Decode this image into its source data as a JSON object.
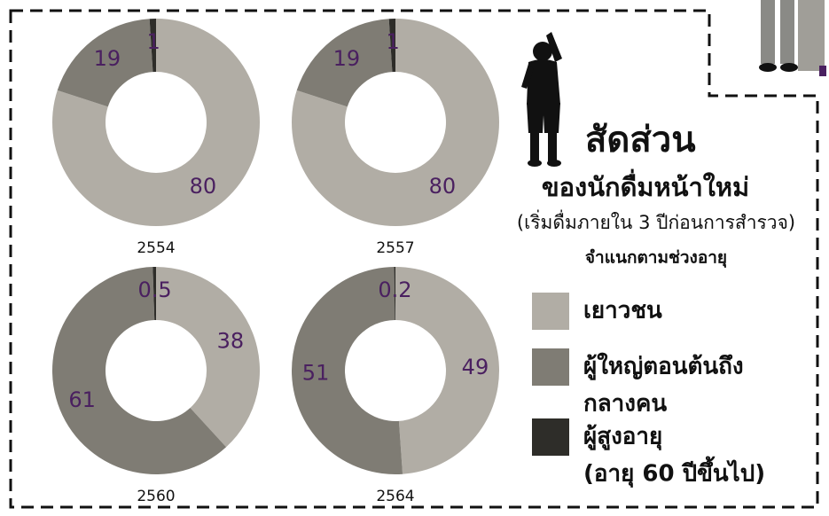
{
  "chart_data": [
    {
      "type": "pie",
      "donut": true,
      "title": "2554",
      "values": [
        80,
        19,
        1
      ]
    },
    {
      "type": "pie",
      "donut": true,
      "title": "2557",
      "values": [
        80,
        19,
        1
      ]
    },
    {
      "type": "pie",
      "donut": true,
      "title": "2560",
      "values": [
        38,
        61,
        0.5
      ]
    },
    {
      "type": "pie",
      "donut": true,
      "title": "2564",
      "values": [
        49,
        51,
        0.2
      ]
    }
  ],
  "heading": {
    "title": "สัดส่วน",
    "subtitle": "ของนักดื่มหน้าใหม่",
    "note": "(เริ่มดื่มภายใน 3 ปีก่อนการสำรวจ)",
    "by": "จำแนกตามช่วงอายุ"
  },
  "legend": {
    "colors": [
      "#b1ada5",
      "#7f7c74",
      "#2e2d29"
    ],
    "labels": [
      [
        "เยาวชน"
      ],
      [
        "ผู้ใหญ่ตอนต้นถึง",
        "กลางคน"
      ],
      [
        "ผู้สูงอายุ",
        "(อายุ 60 ปีขึ้นไป)"
      ]
    ]
  }
}
